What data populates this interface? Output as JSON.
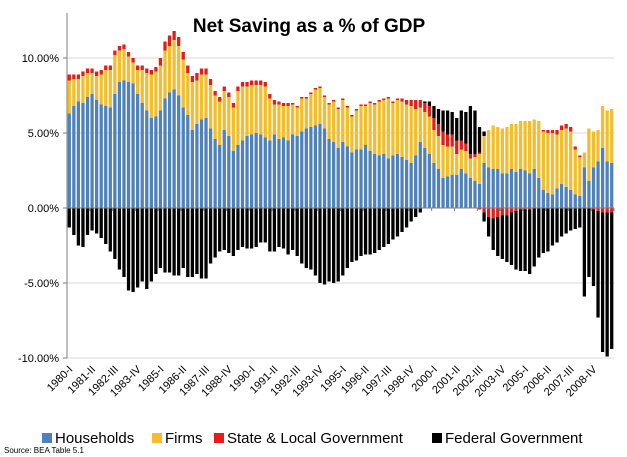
{
  "chart_data": {
    "type": "bar",
    "stacked": true,
    "title": "Net Saving as a % of GDP",
    "source": "Source: BEA  Table 5.1",
    "ylim": [
      -10,
      13
    ],
    "y_ticks": [
      -10,
      -5,
      0,
      5,
      10
    ],
    "y_tick_labels": [
      "-10.00%",
      "-5.00%",
      "0.00%",
      "5.00%",
      "10.00%"
    ],
    "x_tick_labels": [
      "1980-I",
      "1981-II",
      "1982-III",
      "1983-IV",
      "1985-I",
      "1986-II",
      "1987-III",
      "1988-IV",
      "1990-I",
      "1991-II",
      "1992-III",
      "1993-IV",
      "1995-I",
      "1996-II",
      "1997-III",
      "1998-IV",
      "2000-I",
      "2001-II",
      "2002-III",
      "2003-IV",
      "2005-I",
      "2006-II",
      "2007-III",
      "2008-IV"
    ],
    "start_year": 1980,
    "n_quarters": 120,
    "colors": {
      "Households": "#4f81bd",
      "Firms": "#f5bd2c",
      "State & Local Government": "#e81a1a",
      "Federal Government": "#000000"
    },
    "series": [
      {
        "name": "Households",
        "values": [
          6.3,
          6.8,
          7.1,
          7.0,
          7.4,
          7.6,
          7.2,
          6.9,
          6.8,
          6.7,
          7.6,
          8.4,
          8.5,
          8.4,
          8.3,
          7.6,
          7.0,
          6.5,
          6.0,
          6.1,
          6.5,
          7.3,
          7.7,
          7.9,
          7.5,
          6.7,
          6.2,
          5.2,
          5.6,
          5.9,
          6.0,
          5.3,
          4.6,
          4.2,
          5.2,
          4.8,
          3.8,
          4.2,
          4.5,
          4.8,
          4.9,
          5.0,
          4.9,
          4.7,
          4.5,
          4.9,
          4.6,
          4.7,
          4.5,
          4.9,
          4.8,
          5.1,
          5.3,
          5.4,
          5.5,
          5.6,
          5.3,
          4.6,
          4.4,
          4.0,
          4.4,
          4.1,
          3.7,
          3.9,
          3.9,
          4.2,
          3.8,
          3.6,
          3.5,
          3.6,
          3.3,
          3.5,
          3.6,
          3.4,
          3.2,
          3.0,
          3.5,
          4.4,
          4.0,
          3.6,
          3.0,
          2.6,
          2.0,
          2.1,
          2.2,
          2.2,
          2.6,
          2.3,
          2.0,
          1.8,
          1.6,
          3.0,
          2.7,
          2.6,
          2.6,
          2.3,
          2.3,
          2.6,
          2.4,
          2.6,
          2.5,
          2.3,
          2.6,
          2.0,
          1.2,
          1.0,
          0.9,
          1.3,
          1.6,
          1.4,
          1.2,
          0.9,
          0.8,
          2.7,
          1.8,
          2.7,
          3.1,
          4.0,
          3.1,
          3.0
        ],
        "neg_values": [
          0,
          0,
          0,
          0,
          0,
          0,
          0,
          0,
          0,
          0,
          0,
          0,
          0,
          0,
          0,
          0,
          0,
          0,
          0,
          0,
          0,
          0,
          0,
          0,
          0,
          0,
          0,
          0,
          0,
          0,
          0,
          0,
          0,
          0,
          0,
          0,
          0,
          0,
          0,
          0,
          0,
          0,
          0,
          0,
          0,
          0,
          0,
          0,
          0,
          0,
          0,
          0,
          0,
          0,
          0,
          0,
          0,
          0,
          0,
          0,
          0,
          0,
          0,
          0,
          0,
          0,
          0,
          0,
          0,
          0,
          0,
          0,
          0,
          0,
          0,
          0,
          0,
          0,
          0,
          0,
          0,
          0,
          0,
          0,
          0,
          0,
          0,
          0,
          0,
          0,
          0,
          0,
          0,
          0,
          0,
          0,
          0,
          0,
          0,
          0,
          0,
          0,
          0,
          0,
          0,
          0,
          0,
          0,
          0,
          0,
          0,
          0,
          0,
          0,
          0,
          0,
          0,
          0,
          0,
          0
        ]
      },
      {
        "name": "Firms",
        "values": [
          2.2,
          1.8,
          1.5,
          1.8,
          1.6,
          1.4,
          1.6,
          2.0,
          2.4,
          2.5,
          2.6,
          2.1,
          2.1,
          1.7,
          1.4,
          1.6,
          2.2,
          2.5,
          2.9,
          3.0,
          3.0,
          3.2,
          3.1,
          3.3,
          3.3,
          3.2,
          2.8,
          3.2,
          2.9,
          3.0,
          2.9,
          2.9,
          2.9,
          2.9,
          2.6,
          2.6,
          2.9,
          3.6,
          3.6,
          3.3,
          3.3,
          3.2,
          3.3,
          3.4,
          2.8,
          2.0,
          2.3,
          2.1,
          2.3,
          2.0,
          1.9,
          2.2,
          2.0,
          2.2,
          2.4,
          2.4,
          2.1,
          2.3,
          2.7,
          2.6,
          2.8,
          2.6,
          2.4,
          2.6,
          2.9,
          2.6,
          3.2,
          3.3,
          3.6,
          3.6,
          4.0,
          3.5,
          3.6,
          3.7,
          3.7,
          3.8,
          3.1,
          2.3,
          2.4,
          2.5,
          2.2,
          2.2,
          2.2,
          2.0,
          1.9,
          1.4,
          1.3,
          1.5,
          1.3,
          1.6,
          2.0,
          1.8,
          2.5,
          2.9,
          2.8,
          3.0,
          3.1,
          3.0,
          3.2,
          3.2,
          3.3,
          3.5,
          3.3,
          3.8,
          3.9,
          4.0,
          4.1,
          3.6,
          3.6,
          3.9,
          3.9,
          3.0,
          2.6,
          1.0,
          3.5,
          2.4,
          2.1,
          2.8,
          3.4,
          3.6
        ],
        "neg_values": [
          0,
          0,
          0,
          0,
          0,
          0,
          0,
          0,
          0,
          0,
          0,
          0,
          0,
          0,
          0,
          0,
          0,
          0,
          0,
          0,
          0,
          0,
          0,
          0,
          0,
          0,
          0,
          0,
          0,
          0,
          0,
          0,
          0,
          0,
          0,
          0,
          0,
          0,
          0,
          0,
          0,
          0,
          0,
          0,
          0,
          0,
          0,
          0,
          0,
          0,
          0,
          0,
          0,
          0,
          0,
          0,
          0,
          0,
          0,
          0,
          0,
          0,
          0,
          0,
          0,
          0,
          0,
          0,
          0,
          0,
          0,
          0,
          0,
          0,
          0,
          0,
          0,
          0,
          0,
          0,
          0,
          0,
          0,
          0,
          0,
          0,
          0,
          0,
          0,
          0,
          0,
          0,
          0,
          0,
          0,
          0,
          0,
          0,
          0,
          0,
          0,
          0,
          0,
          0,
          0,
          0,
          0,
          0,
          0,
          0,
          0,
          0,
          0,
          0,
          0,
          0,
          0,
          0,
          0,
          0
        ]
      },
      {
        "name": "State & Local Government",
        "values": [
          0.4,
          0.3,
          0.3,
          0.3,
          0.3,
          0.3,
          0.3,
          0.3,
          0.3,
          0.3,
          0.3,
          0.3,
          0.3,
          0.3,
          0.3,
          0.3,
          0.3,
          0.3,
          0.3,
          0.3,
          0.5,
          0.6,
          0.7,
          0.6,
          0.6,
          0.5,
          0.5,
          0.4,
          0.5,
          0.4,
          0.4,
          0.4,
          0.3,
          0.3,
          0.3,
          0.3,
          0.3,
          0.3,
          0.3,
          0.3,
          0.3,
          0.3,
          0.3,
          0.3,
          0.3,
          0.3,
          0.2,
          0.2,
          0.2,
          0.1,
          0.1,
          0.1,
          0.1,
          0.1,
          0.1,
          0.1,
          0.1,
          0.1,
          0.1,
          0.1,
          0.1,
          0.1,
          0.1,
          0.1,
          0.1,
          0.1,
          0.1,
          0.1,
          0.1,
          0.1,
          0.1,
          0.1,
          0.1,
          0.2,
          0.3,
          0.4,
          0.6,
          0.5,
          0.6,
          0.7,
          0.8,
          0.8,
          0.9,
          0.8,
          0.8,
          0.9,
          0.6,
          0.5,
          0.3,
          0.2,
          0.1,
          0,
          0,
          0,
          0,
          0,
          0,
          0,
          0,
          0,
          0,
          0,
          0,
          0,
          0.1,
          0.2,
          0.2,
          0.3,
          0.3,
          0.3,
          0.3,
          0.2,
          0.1,
          0,
          0,
          0,
          0,
          0,
          0,
          0
        ],
        "neg_values": [
          0,
          0,
          0,
          0,
          0,
          0,
          0,
          0,
          0,
          0,
          0,
          0,
          0,
          0,
          0,
          0,
          0,
          0,
          0,
          0,
          0,
          0,
          0,
          0,
          0,
          0,
          0,
          0,
          0,
          0,
          0,
          0,
          0,
          0,
          0,
          0,
          0,
          0,
          0,
          0,
          0,
          0,
          0,
          0,
          0,
          0,
          0,
          0,
          0,
          0,
          0,
          0,
          0,
          0,
          0,
          0,
          0,
          0,
          0,
          0,
          0,
          0,
          0,
          0,
          0,
          0,
          0,
          0,
          0,
          0,
          0,
          0,
          0,
          0,
          0,
          0,
          0,
          0,
          0,
          0,
          0,
          0,
          0,
          0,
          0,
          0,
          0,
          0,
          0,
          0,
          -0.1,
          -0.3,
          -0.6,
          -0.7,
          -0.6,
          -0.5,
          -0.5,
          -0.3,
          -0.2,
          -0.1,
          -0.1,
          -0.1,
          0,
          0,
          0,
          0,
          0,
          0,
          0,
          0,
          0,
          0,
          0,
          0,
          0,
          -0.1,
          -0.2,
          -0.3,
          -0.3,
          -0.3
        ]
      },
      {
        "name": "Federal Government",
        "values": [
          0,
          0,
          0,
          0,
          0,
          0,
          0,
          0,
          0,
          0,
          0,
          0,
          0,
          0,
          0,
          0,
          0,
          0,
          0,
          0,
          0,
          0,
          0,
          0,
          0,
          0,
          0,
          0,
          0,
          0,
          0,
          0,
          0,
          0,
          0,
          0,
          0,
          0,
          0,
          0,
          0,
          0,
          0,
          0,
          0,
          0,
          0,
          0,
          0,
          0,
          0,
          0,
          0,
          0,
          0,
          0,
          0,
          0,
          0,
          0,
          0,
          0,
          0,
          0,
          0,
          0,
          0,
          0,
          0,
          0,
          0,
          0,
          0,
          0,
          0,
          0,
          0,
          0,
          0.1,
          0.3,
          0.8,
          1.0,
          1.4,
          1.6,
          1.5,
          1.5,
          2.0,
          2.1,
          3.2,
          2.9,
          1.7,
          0.3,
          0,
          0,
          0,
          0,
          0,
          0,
          0,
          0,
          0,
          0,
          0,
          0,
          0,
          0,
          0,
          0,
          0,
          0,
          0,
          0,
          0,
          0,
          0,
          0,
          0,
          0,
          0,
          0
        ],
        "neg_values": [
          -1.3,
          -1.8,
          -2.5,
          -2.6,
          -1.8,
          -1.5,
          -1.7,
          -2.0,
          -2.4,
          -2.9,
          -3.4,
          -4.1,
          -4.6,
          -5.5,
          -5.6,
          -5.3,
          -4.9,
          -5.4,
          -4.9,
          -4.4,
          -4.0,
          -4.3,
          -4.3,
          -4.5,
          -4.5,
          -4.0,
          -4.6,
          -4.6,
          -4.4,
          -4.7,
          -4.7,
          -3.7,
          -3.3,
          -2.9,
          -2.8,
          -3.0,
          -3.2,
          -2.8,
          -2.6,
          -2.7,
          -2.7,
          -2.6,
          -2.3,
          -2.3,
          -2.9,
          -2.9,
          -2.6,
          -2.7,
          -3.1,
          -2.8,
          -3.2,
          -3.7,
          -4.0,
          -4.1,
          -4.5,
          -5.0,
          -5.1,
          -4.9,
          -5.0,
          -4.9,
          -4.5,
          -4.0,
          -3.6,
          -3.5,
          -3.2,
          -3.1,
          -3.1,
          -3.0,
          -2.8,
          -2.6,
          -2.4,
          -2.1,
          -1.9,
          -1.6,
          -1.3,
          -0.9,
          -0.6,
          -0.3,
          0,
          0,
          0,
          0,
          0,
          0,
          0,
          0,
          0,
          0,
          0,
          0,
          0,
          -0.6,
          -1.3,
          -2.1,
          -2.6,
          -2.9,
          -3.1,
          -3.5,
          -3.9,
          -4.1,
          -4.1,
          -4.3,
          -3.9,
          -3.3,
          -3.0,
          -2.9,
          -2.5,
          -2.3,
          -1.9,
          -1.7,
          -1.5,
          -1.4,
          -1.3,
          -5.9,
          -4.6,
          -5.1,
          -7.1,
          -9.3,
          -9.6,
          -9.1
        ]
      }
    ]
  }
}
